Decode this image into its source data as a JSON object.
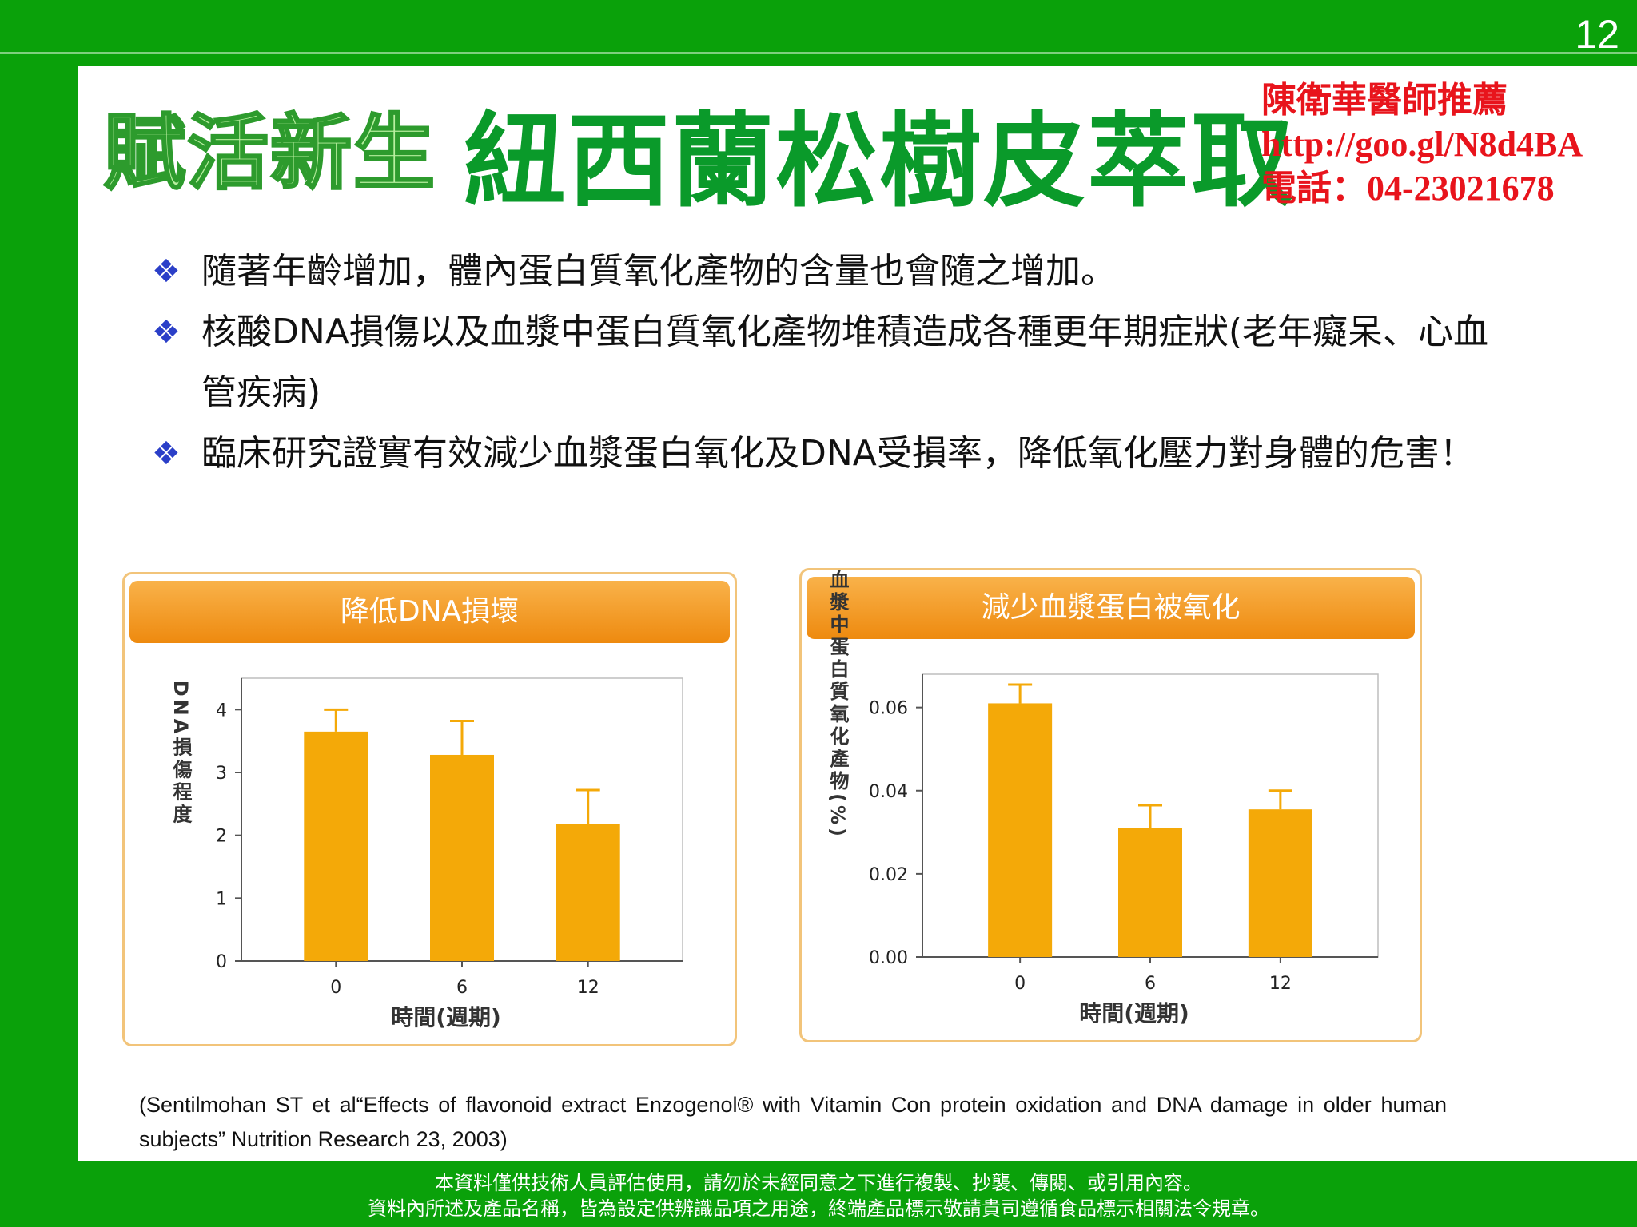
{
  "page_number": "12",
  "title": {
    "left": "賦活新生",
    "main": "紐西蘭松樹皮萃取"
  },
  "contact": {
    "line1": "陳衛華醫師推薦",
    "line2": "http://goo.gl/N8d4BA",
    "line3": "電話：04-23021678"
  },
  "bullets": [
    {
      "mark": "❖",
      "text": "隨著年齡增加，體內蛋白質氧化產物的含量也會隨之增加。"
    },
    {
      "mark": "❖",
      "text": "核酸DNA損傷以及血漿中蛋白質氧化產物堆積造成各種更年期症狀(老年癡呆、心血管疾病)"
    },
    {
      "mark": "❖",
      "text": "臨床研究證實有效減少血漿蛋白氧化及DNA受損率，降低氧化壓力對身體的危害！"
    }
  ],
  "colors": {
    "background": "#0aa10a",
    "bar": "#f4a908",
    "header_orange": "#ee8a0f",
    "title_green": "#0a9a2a",
    "contact_red": "#e8141c"
  },
  "chart_data": [
    {
      "type": "bar",
      "title": "降低DNA損壞",
      "xlabel": "時間(週期)",
      "ylabel": "DNA損傷程度",
      "categories": [
        "0",
        "6",
        "12"
      ],
      "values": [
        3.65,
        3.28,
        2.18
      ],
      "error_upper": [
        4.0,
        3.82,
        2.72
      ],
      "yticks": [
        "0",
        "1",
        "2",
        "3",
        "4"
      ],
      "ylim": [
        0,
        4.5
      ]
    },
    {
      "type": "bar",
      "title": "減少血漿蛋白被氧化",
      "xlabel": "時間(週期)",
      "ylabel": "血漿中蛋白質氧化產物(%)",
      "categories": [
        "0",
        "6",
        "12"
      ],
      "values": [
        0.061,
        0.031,
        0.0355
      ],
      "error_upper": [
        0.0655,
        0.0365,
        0.04
      ],
      "yticks": [
        "0.00",
        "0.02",
        "0.04",
        "0.06"
      ],
      "ylim": [
        0,
        0.068
      ]
    }
  ],
  "citation": "(Sentilmohan ST et al“Effects of flavonoid extract Enzogenol® with Vitamin Con protein oxidation and DNA damage in older human subjects”  Nutrition Research 23, 2003)",
  "footer": {
    "line1": "本資料僅供技術人員評估使用，請勿於未經同意之下進行複製、抄襲、傳閱、或引用內容。",
    "line2": "資料內所述及產品名稱，皆為設定供辨識品項之用途，終端產品標示敬請貴司遵循食品標示相關法令規章。"
  }
}
